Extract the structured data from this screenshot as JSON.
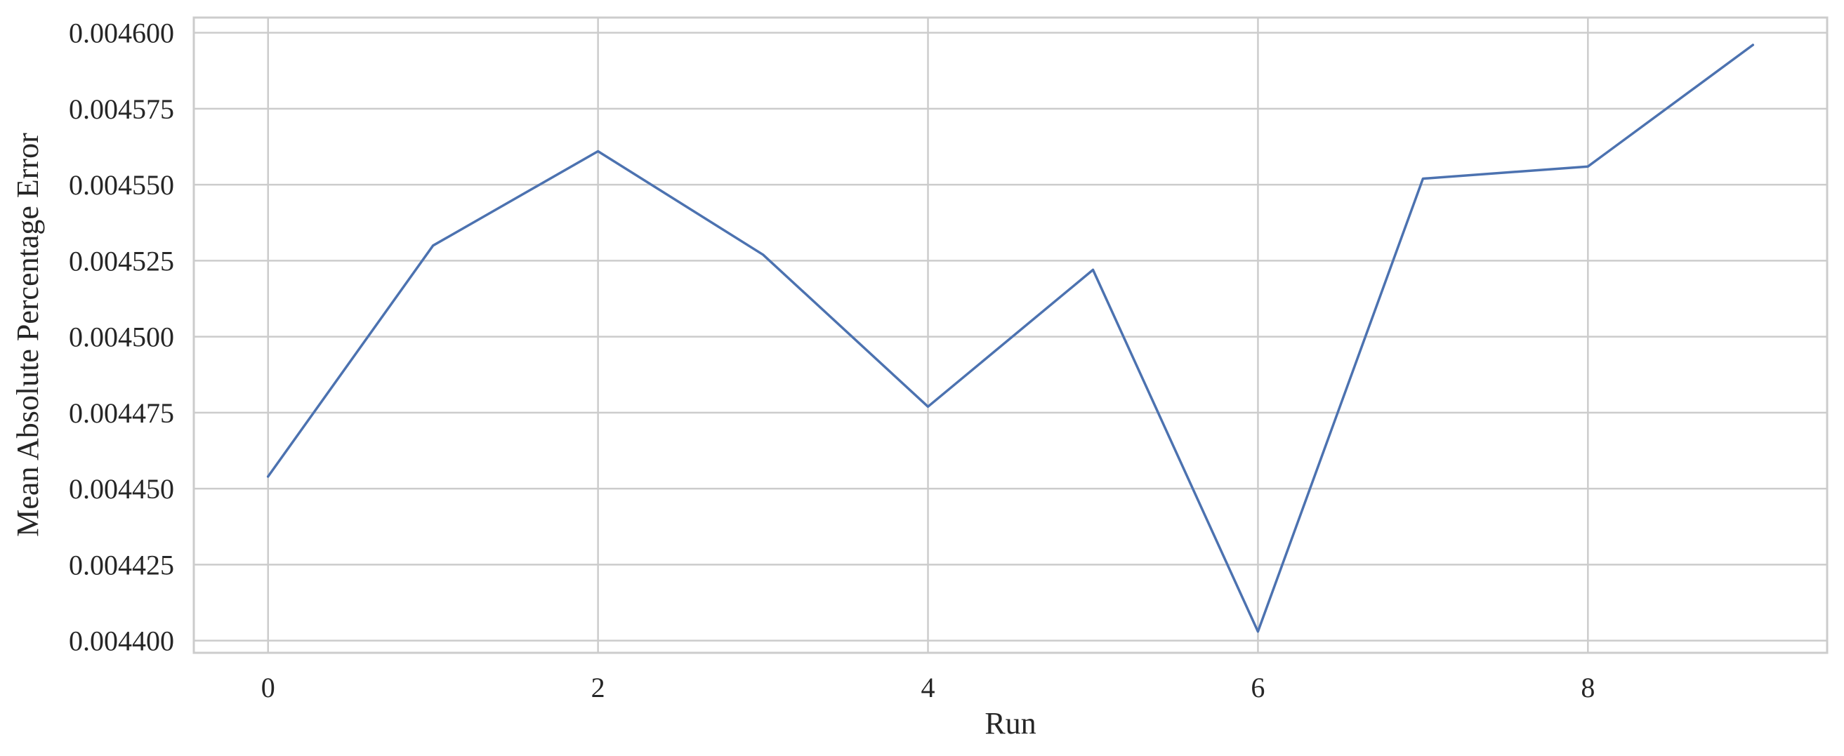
{
  "chart_data": {
    "type": "line",
    "title": "",
    "xlabel": "Run",
    "ylabel": "Mean Absolute Percentage Error",
    "xlim": [
      -0.45,
      9.45
    ],
    "ylim": [
      0.004396,
      0.004605
    ],
    "x_ticks": [
      0,
      2,
      4,
      6,
      8
    ],
    "x_tick_labels": [
      "0",
      "2",
      "4",
      "6",
      "8"
    ],
    "y_ticks": [
      0.0044,
      0.004425,
      0.00445,
      0.004475,
      0.0045,
      0.004525,
      0.00455,
      0.004575,
      0.0046
    ],
    "y_tick_labels": [
      "0.004400",
      "0.004425",
      "0.004450",
      "0.004475",
      "0.004500",
      "0.004525",
      "0.004550",
      "0.004575",
      "0.004600"
    ],
    "grid": true,
    "legend": "none",
    "series": [
      {
        "color": "#4c72b0",
        "x": [
          0,
          1,
          2,
          3,
          4,
          5,
          6,
          7,
          8,
          9
        ],
        "y": [
          0.004454,
          0.00453,
          0.004561,
          0.004527,
          0.004477,
          0.004522,
          0.004403,
          0.004552,
          0.004556,
          0.004596
        ]
      }
    ]
  }
}
